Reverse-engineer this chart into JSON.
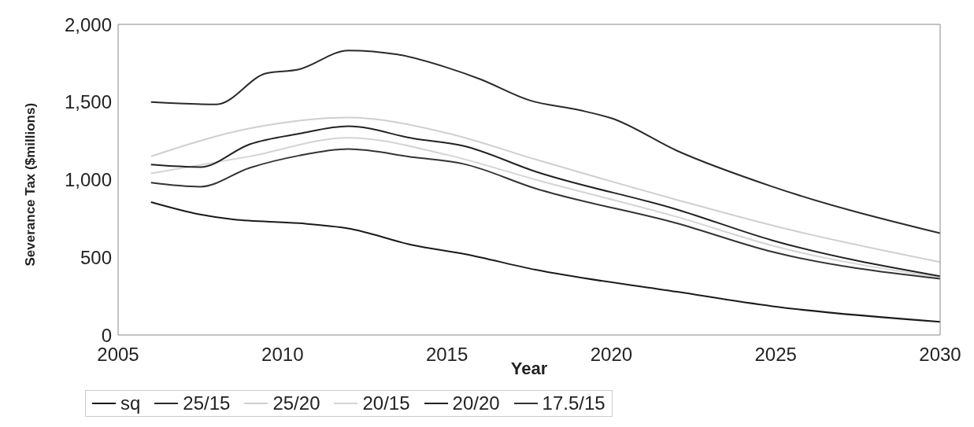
{
  "chart_data": {
    "type": "line",
    "xlabel": "Year",
    "ylabel": "Severance Tax ($millions)",
    "xlim": [
      2005,
      2030
    ],
    "xticks": [
      2005,
      2010,
      2015,
      2020,
      2025,
      2030
    ],
    "ylim": [
      0,
      2000
    ],
    "yticks": [
      0,
      500,
      {
        "value": 1000,
        "label": "1,000"
      },
      {
        "value": 1500,
        "label": "1,500"
      },
      {
        "value": 2000,
        "label": "2,000"
      }
    ],
    "grid": false,
    "legend": "bottom",
    "marker": "none",
    "line_style": "solid",
    "series": [
      {
        "name": "sq",
        "color": "#1a1a1a",
        "x": [
          2006,
          2007.5,
          2008.5,
          2010.5,
          2012,
          2014,
          2015.5,
          2017.7,
          2022,
          2024.9,
          2030
        ],
        "values": [
          856,
          776,
          744,
          720,
          686,
          577,
          523,
          420,
          278,
          185,
          85
        ]
      },
      {
        "name": "25/15",
        "color": "#2a2a2a",
        "x": [
          2006,
          2008,
          2009.5,
          2010.5,
          2012,
          2013.5,
          2015,
          2016,
          2017.5,
          2019,
          2020,
          2022,
          2024.9,
          2030
        ],
        "values": [
          1500,
          1485,
          1685,
          1710,
          1832,
          1806,
          1722,
          1648,
          1512,
          1449,
          1396,
          1186,
          955,
          655
        ]
      },
      {
        "name": "25/20",
        "color": "#cfcfcf",
        "x": [
          2006,
          2009,
          2012,
          2015,
          2017.7,
          2022,
          2025,
          2030
        ],
        "values": [
          1150,
          1330,
          1400,
          1300,
          1130,
          870,
          700,
          470
        ]
      },
      {
        "name": "20/15",
        "color": "#d4d4d4",
        "x": [
          2006,
          2009,
          2012,
          2015,
          2017.7,
          2022,
          2025,
          2030
        ],
        "values": [
          1040,
          1150,
          1270,
          1160,
          1000,
          760,
          570,
          370
        ]
      },
      {
        "name": "20/20",
        "color": "#222222",
        "x": [
          2006,
          2007.5,
          2009,
          2010.5,
          2012,
          2014,
          2015.5,
          2017.7,
          2022,
          2024.9,
          2030
        ],
        "values": [
          1097,
          1081,
          1228,
          1296,
          1344,
          1265,
          1218,
          1052,
          808,
          609,
          378
        ]
      },
      {
        "name": "17.5/15",
        "color": "#333333",
        "x": [
          2006,
          2007.5,
          2009,
          2010.5,
          2012,
          2014,
          2015.5,
          2017.7,
          2022,
          2024.9,
          2030
        ],
        "values": [
          981,
          955,
          1076,
          1155,
          1197,
          1144,
          1102,
          943,
          719,
          535,
          362
        ]
      }
    ]
  }
}
